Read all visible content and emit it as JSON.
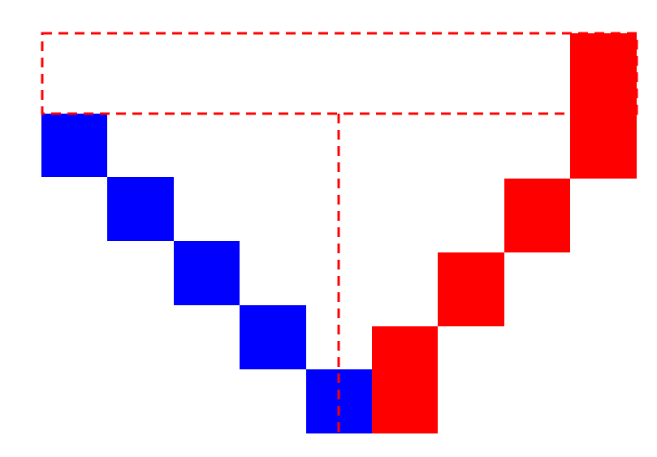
{
  "diagram": {
    "colors": {
      "left_blocks": "#0000ff",
      "right_blocks": "#ff0000",
      "dashed_lines": "#ff0000",
      "background": "#ffffff"
    },
    "left_block_count": 5,
    "right_block_count": 4,
    "line_style": "dashed"
  }
}
